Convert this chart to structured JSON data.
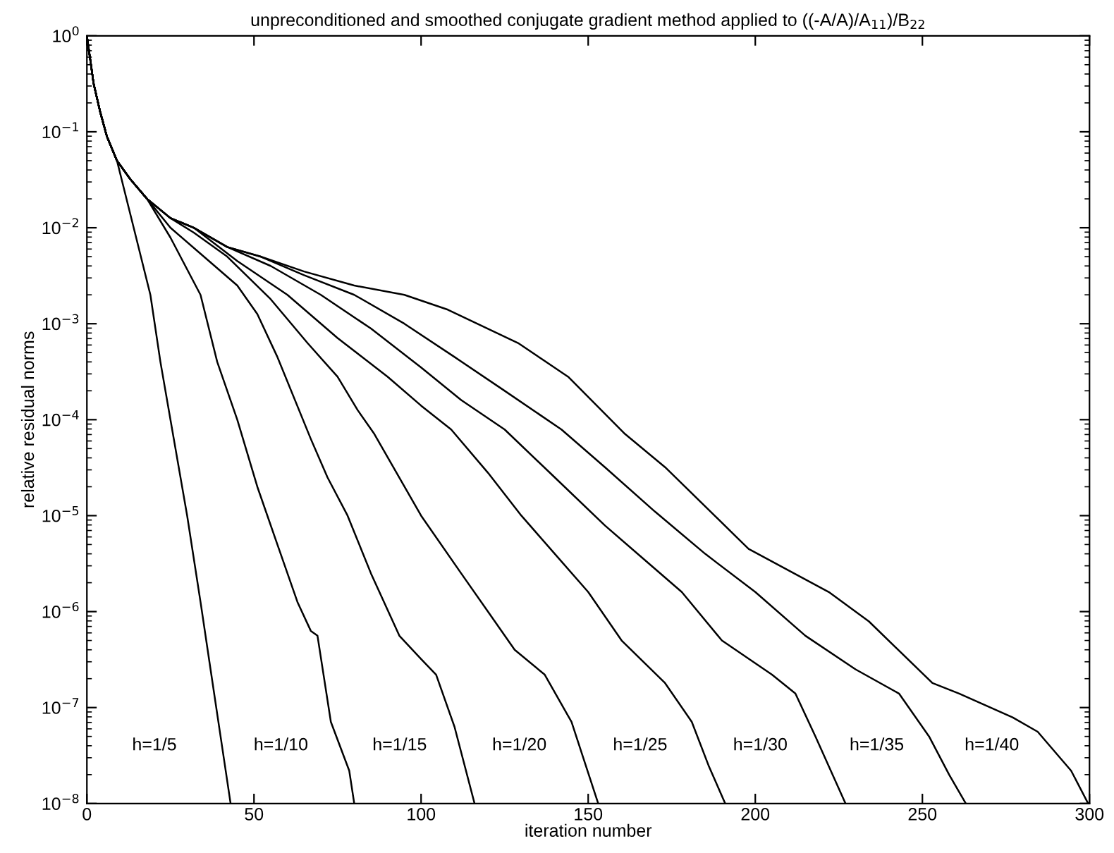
{
  "chart_data": {
    "type": "line",
    "title": "unpreconditioned and smoothed conjugate gradient method applied to ((-A/A)/A$_{11}$)/B$_{22}$",
    "xlabel": "iteration number",
    "ylabel": "relative residual norms",
    "log": "y",
    "grid": false,
    "legend": false,
    "marker": "none",
    "line_style": "solid",
    "xlim": [
      0,
      300
    ],
    "xticks": [
      0,
      50,
      100,
      150,
      200,
      250,
      300
    ],
    "ylim": [
      1e-08,
      1
    ],
    "yticks": [
      {
        "value": 1e-08,
        "label": "10$^{−8}$"
      },
      {
        "value": 1e-07,
        "label": "10$^{−7}$"
      },
      {
        "value": 1e-06,
        "label": "10$^{−6}$"
      },
      {
        "value": 1e-05,
        "label": "10$^{−5}$"
      },
      {
        "value": 0.0001,
        "label": "10$^{−4}$"
      },
      {
        "value": 0.001,
        "label": "10$^{−3}$"
      },
      {
        "value": 0.01,
        "label": "10$^{−2}$"
      },
      {
        "value": 0.1,
        "label": "10$^{−1}$"
      },
      {
        "value": 1,
        "label": "10$^{0}$"
      }
    ],
    "series": [
      {
        "name": "h=1/5",
        "color": "#000000",
        "x": [
          0,
          2,
          4,
          6,
          9,
          14,
          19,
          22,
          25,
          30,
          34,
          37,
          40,
          43
        ],
        "values": [
          1,
          0.32,
          0.16,
          0.089,
          0.05,
          0.01,
          0.002,
          0.0004,
          0.0001,
          1e-05,
          1.26e-06,
          2.5e-07,
          5e-08,
          1e-08
        ]
      },
      {
        "name": "h=1/10",
        "color": "#000000",
        "x": [
          0,
          2,
          4,
          6,
          9,
          13,
          18,
          25,
          34,
          39,
          45,
          51,
          57,
          63,
          67,
          69,
          73,
          78.5,
          80
        ],
        "values": [
          1,
          0.32,
          0.16,
          0.089,
          0.05,
          0.032,
          0.02,
          0.0079,
          0.002,
          0.0004,
          0.0001,
          2e-05,
          5e-06,
          1.26e-06,
          6.3e-07,
          5.6e-07,
          7.1e-08,
          2.2e-08,
          1e-08
        ]
      },
      {
        "name": "h=1/15",
        "color": "#000000",
        "x": [
          0,
          2,
          4,
          6,
          9,
          13,
          18,
          25,
          35,
          45,
          51,
          57,
          67,
          72,
          78,
          85,
          93.5,
          100,
          104.5,
          110,
          116
        ],
        "values": [
          1,
          0.32,
          0.16,
          0.089,
          0.05,
          0.032,
          0.02,
          0.01,
          0.005,
          0.0025,
          0.00126,
          0.00045,
          6.3e-05,
          2.5e-05,
          1e-05,
          2.5e-06,
          5.6e-07,
          3.2e-07,
          2.2e-07,
          6.3e-08,
          1e-08
        ]
      },
      {
        "name": "h=1/20",
        "color": "#000000",
        "x": [
          0,
          2,
          4,
          6,
          9,
          13,
          18,
          25,
          32,
          42,
          55,
          66,
          75,
          81,
          86,
          100,
          112,
          120,
          128,
          137,
          145,
          153
        ],
        "values": [
          1,
          0.32,
          0.16,
          0.089,
          0.05,
          0.032,
          0.02,
          0.0126,
          0.0089,
          0.005,
          0.0018,
          0.00063,
          0.00028,
          0.000126,
          7.1e-05,
          1e-05,
          2.5e-06,
          1e-06,
          4e-07,
          2.2e-07,
          7.1e-08,
          1e-08
        ]
      },
      {
        "name": "h=1/25",
        "color": "#000000",
        "x": [
          0,
          2,
          4,
          6,
          9,
          13,
          18,
          25,
          32,
          45,
          60,
          75,
          90,
          100,
          109,
          120,
          130,
          140,
          150,
          160,
          173,
          181,
          186,
          191
        ],
        "values": [
          1,
          0.32,
          0.16,
          0.089,
          0.05,
          0.032,
          0.02,
          0.0126,
          0.01,
          0.0045,
          0.002,
          0.00071,
          0.00028,
          0.00014,
          7.9e-05,
          2.8e-05,
          1e-05,
          4e-06,
          1.6e-06,
          5e-07,
          1.8e-07,
          7.1e-08,
          2.5e-08,
          1e-08
        ]
      },
      {
        "name": "h=1/30",
        "color": "#000000",
        "x": [
          0,
          2,
          4,
          6,
          9,
          13,
          18,
          25,
          32,
          42,
          55,
          70,
          85,
          100,
          112,
          125,
          140,
          155,
          168,
          178,
          190,
          205,
          212,
          218,
          227
        ],
        "values": [
          1,
          0.32,
          0.16,
          0.089,
          0.05,
          0.032,
          0.02,
          0.0126,
          0.01,
          0.0063,
          0.004,
          0.002,
          0.00089,
          0.00035,
          0.00016,
          7.9e-05,
          2.5e-05,
          7.9e-06,
          3.2e-06,
          1.6e-06,
          5e-07,
          2.2e-07,
          1.4e-07,
          5e-08,
          1e-08
        ]
      },
      {
        "name": "h=1/35",
        "color": "#000000",
        "x": [
          0,
          2,
          4,
          6,
          9,
          13,
          18,
          25,
          32,
          42,
          52,
          65,
          80,
          95,
          110,
          125,
          142,
          155,
          170,
          185,
          200,
          215,
          230,
          243,
          252,
          258,
          263
        ],
        "values": [
          1,
          0.32,
          0.16,
          0.089,
          0.05,
          0.032,
          0.02,
          0.0126,
          0.01,
          0.0063,
          0.005,
          0.0032,
          0.002,
          0.001,
          0.00045,
          0.0002,
          7.9e-05,
          3.2e-05,
          1.1e-05,
          4e-06,
          1.6e-06,
          5.6e-07,
          2.5e-07,
          1.4e-07,
          5e-08,
          2e-08,
          1e-08
        ]
      },
      {
        "name": "h=1/40",
        "color": "#000000",
        "x": [
          0,
          2,
          4,
          6,
          9,
          13,
          18,
          25,
          32,
          42,
          52,
          65,
          80,
          95,
          108,
          129,
          144,
          161,
          173,
          198,
          222,
          234,
          253,
          261,
          277,
          284.5,
          294.5,
          299.6
        ],
        "values": [
          1,
          0.32,
          0.16,
          0.089,
          0.05,
          0.032,
          0.02,
          0.0126,
          0.01,
          0.0063,
          0.005,
          0.0035,
          0.0025,
          0.002,
          0.0014,
          0.00063,
          0.00028,
          7.1e-05,
          3.2e-05,
          4.5e-06,
          1.6e-06,
          7.9e-07,
          1.8e-07,
          1.4e-07,
          7.9e-08,
          5.6e-08,
          2.2e-08,
          1e-08
        ]
      }
    ]
  }
}
